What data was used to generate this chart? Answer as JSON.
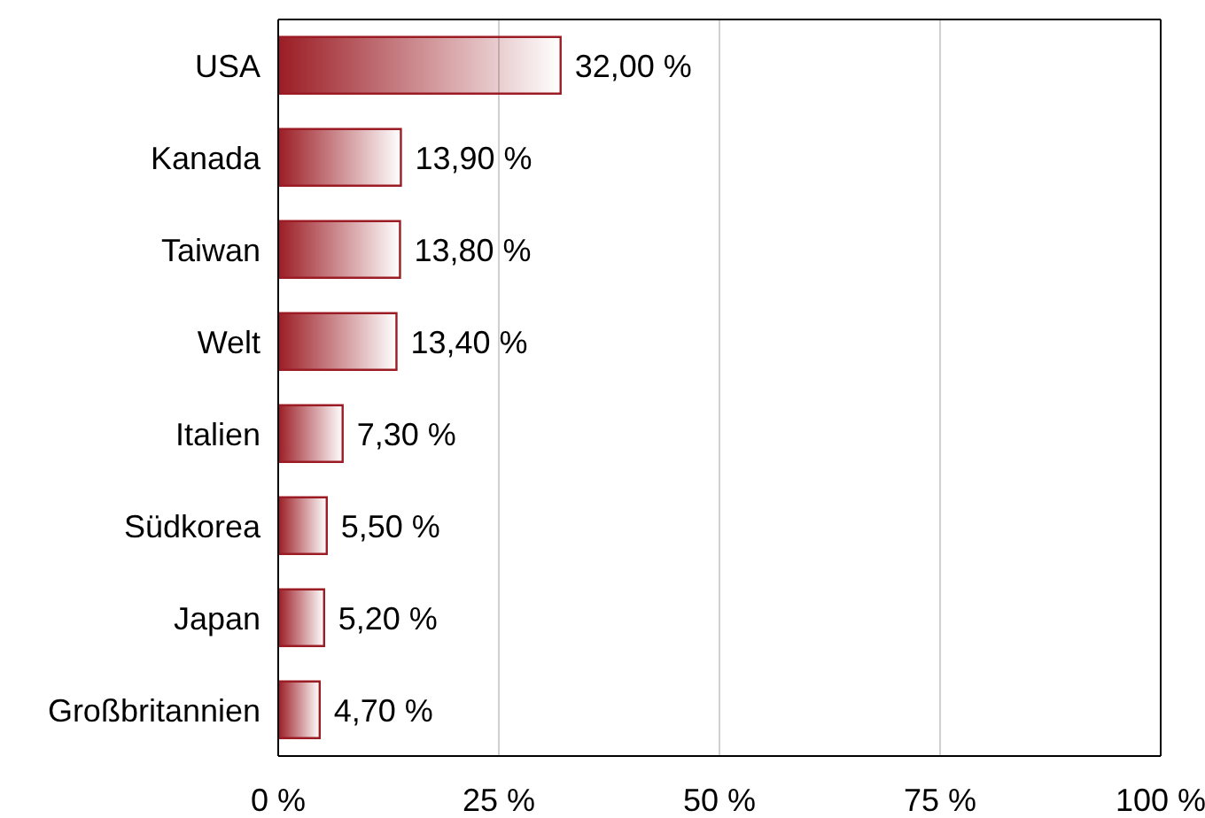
{
  "chart_data": {
    "type": "bar",
    "orientation": "horizontal",
    "categories": [
      "USA",
      "Kanada",
      "Taiwan",
      "Welt",
      "Italien",
      "Südkorea",
      "Japan",
      "Großbritannien"
    ],
    "values": [
      32.0,
      13.9,
      13.8,
      13.4,
      7.3,
      5.5,
      5.2,
      4.7
    ],
    "value_labels": [
      "32,00 %",
      "13,90 %",
      "13,80 %",
      "13,40 %",
      "7,30 %",
      "5,50 %",
      "5,20 %",
      "4,70 %"
    ],
    "color": "#9b1c24",
    "xlim": [
      0,
      100
    ],
    "xticks": [
      {
        "value": 0,
        "label": "0 %"
      },
      {
        "value": 25,
        "label": "25 %"
      },
      {
        "value": 50,
        "label": "50 %"
      },
      {
        "value": 75,
        "label": "75 %"
      },
      {
        "value": 100,
        "label": "100 %"
      }
    ],
    "grid": "x",
    "legend": false
  }
}
